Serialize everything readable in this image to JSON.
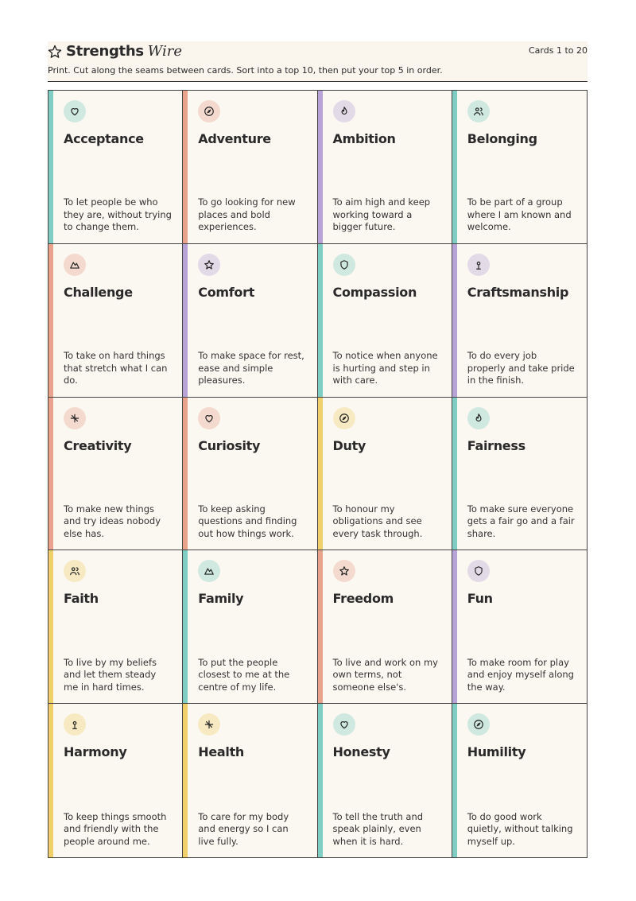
{
  "header": {
    "title": "Strengths",
    "title_accent": "Wire",
    "range": "Cards 1 to 20",
    "instructions": "Print. Cut along the seams between cards. Sort into a top 10, then put your top 5 in order."
  },
  "cards": [
    {
      "title": "Acceptance",
      "description": "To let people be who they are, without trying to change them.",
      "accent": "#7fcdc3"
    },
    {
      "title": "Adventure",
      "description": "To go looking for new places and bold experiences.",
      "accent": "#e9a38c"
    },
    {
      "title": "Ambition",
      "description": "To aim high and keep working toward a bigger future.",
      "accent": "#b7a3d6"
    },
    {
      "title": "Belonging",
      "description": "To be part of a group where I am known and welcome.",
      "accent": "#7fcdc3"
    },
    {
      "title": "Challenge",
      "description": "To take on hard things that stretch what I can do.",
      "accent": "#e9a38c"
    },
    {
      "title": "Comfort",
      "description": "To make space for rest, ease and simple pleasures.",
      "accent": "#b7a3d6"
    },
    {
      "title": "Compassion",
      "description": "To notice when anyone is hurting and step in with care.",
      "accent": "#7fcdc3"
    },
    {
      "title": "Craftsmanship",
      "description": "To do every job properly and take pride in the finish.",
      "accent": "#b7a3d6"
    },
    {
      "title": "Creativity",
      "description": "To make new things and try ideas nobody else has.",
      "accent": "#e9a38c"
    },
    {
      "title": "Curiosity",
      "description": "To keep asking questions and finding out how things work.",
      "accent": "#e9a38c"
    },
    {
      "title": "Duty",
      "description": "To honour my obligations and see every task through.",
      "accent": "#f1d06c"
    },
    {
      "title": "Fairness",
      "description": "To make sure everyone gets a fair go and a fair share.",
      "accent": "#7fcdc3"
    },
    {
      "title": "Faith",
      "description": "To live by my beliefs and let them steady me in hard times.",
      "accent": "#f1d06c"
    },
    {
      "title": "Family",
      "description": "To put the people closest to me at the centre of my life.",
      "accent": "#7fcdc3"
    },
    {
      "title": "Freedom",
      "description": "To live and work on my own terms, not someone else's.",
      "accent": "#e9a38c"
    },
    {
      "title": "Fun",
      "description": "To make room for play and enjoy myself along the way.",
      "accent": "#b7a3d6"
    },
    {
      "title": "Harmony",
      "description": "To keep things smooth and friendly with the people around me.",
      "accent": "#f1d06c"
    },
    {
      "title": "Health",
      "description": "To care for my body and energy so I can live fully.",
      "accent": "#f1d06c"
    },
    {
      "title": "Honesty",
      "description": "To tell the truth and speak plainly, even when it is hard.",
      "accent": "#7fcdc3"
    },
    {
      "title": "Humility",
      "description": "To do good work quietly, without talking myself up.",
      "accent": "#7fcdc3"
    }
  ]
}
